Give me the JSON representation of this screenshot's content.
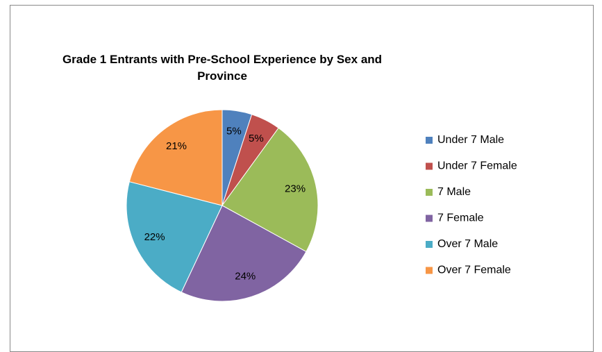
{
  "chart_data": {
    "type": "pie",
    "title": "Grade 1 Entrants with Pre-School Experience by Sex and Province",
    "categories": [
      "Under 7 Male",
      "Under 7 Female",
      "7 Male",
      "7 Female",
      "Over 7 Male",
      "Over 7 Female"
    ],
    "values": [
      5,
      5,
      23,
      24,
      22,
      21
    ],
    "value_labels": [
      "5%",
      "5%",
      "23%",
      "24%",
      "22%",
      "21%"
    ],
    "colors": [
      "#4f81bd",
      "#c0504d",
      "#9bbb59",
      "#8064a2",
      "#4bacc6",
      "#f79646"
    ],
    "legend": "right"
  }
}
